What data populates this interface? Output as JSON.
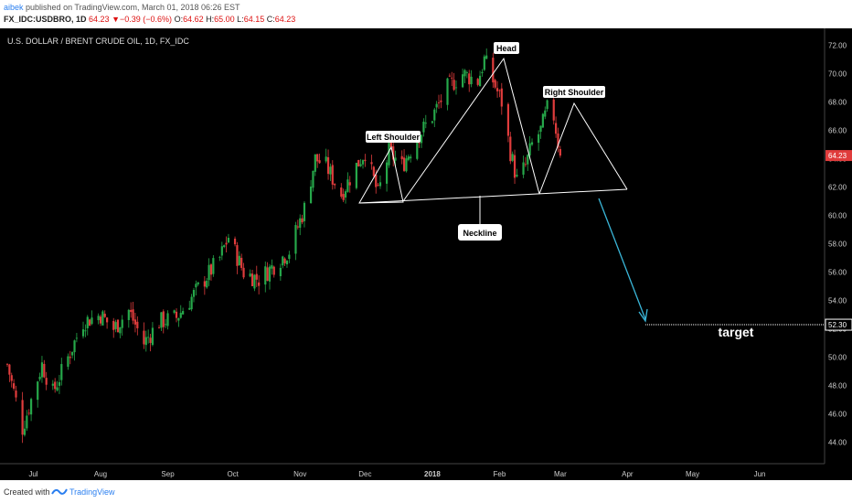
{
  "header": {
    "author": "aibek",
    "published_text": "published on TradingView.com, March 01, 2018 06:26 EST",
    "symbol": "FX_IDC:USDBRO, 1D",
    "last": "64.23",
    "change": "−0.39 (−0.6%)",
    "open_label": "O:",
    "open": "64.62",
    "high_label": "H:",
    "high": "65.00",
    "low_label": "L:",
    "low": "64.15",
    "close_label": "C:",
    "close": "64.23"
  },
  "footer": {
    "created_with": "Created with",
    "brand": "TradingView"
  },
  "chart_data": {
    "type": "candlestick",
    "title": "U.S. DOLLAR / BRENT CRUDE OIL, 1D, FX_IDC",
    "ylim": [
      42.5,
      73.2
    ],
    "y_ticks": [
      "44.00",
      "46.00",
      "48.00",
      "50.00",
      "52.00",
      "54.00",
      "56.00",
      "58.00",
      "60.00",
      "62.00",
      "64.00",
      "66.00",
      "68.00",
      "70.00",
      "72.00"
    ],
    "x_month_labels": [
      "Jul",
      "Aug",
      "Sep",
      "Oct",
      "Nov",
      "Dec",
      "2018",
      "Feb",
      "Mar",
      "Apr",
      "May",
      "Jun"
    ],
    "current_price_label": "64.23",
    "target_price_label": "52.30",
    "target_price": 52.3,
    "annotations": [
      "Left Shoulder",
      "Head",
      "Right Shoulder",
      "Neckline",
      "target"
    ],
    "colors": {
      "up": "#26a84a",
      "down": "#e03c3c",
      "background": "#000000",
      "pattern_lines": "#ffffff",
      "projection": "#3ab6d8",
      "price_label": "#e03c3c"
    },
    "price_path": [
      [
        "2017-06-19",
        49.5
      ],
      [
        "2017-06-26",
        45.0
      ],
      [
        "2017-07-05",
        49.5
      ],
      [
        "2017-07-10",
        47.5
      ],
      [
        "2017-07-17",
        50.0
      ],
      [
        "2017-07-24",
        52.5
      ],
      [
        "2017-08-01",
        53.0
      ],
      [
        "2017-08-07",
        52.0
      ],
      [
        "2017-08-14",
        53.3
      ],
      [
        "2017-08-21",
        51.0
      ],
      [
        "2017-08-28",
        52.5
      ],
      [
        "2017-09-05",
        52.8
      ],
      [
        "2017-09-11",
        54.0
      ],
      [
        "2017-09-18",
        55.5
      ],
      [
        "2017-09-25",
        57.0
      ],
      [
        "2017-09-29",
        58.5
      ],
      [
        "2017-10-06",
        56.0
      ],
      [
        "2017-10-13",
        55.5
      ],
      [
        "2017-10-20",
        56.5
      ],
      [
        "2017-10-27",
        57.5
      ],
      [
        "2017-11-03",
        60.5
      ],
      [
        "2017-11-08",
        64.0
      ],
      [
        "2017-11-13",
        63.5
      ],
      [
        "2017-11-20",
        61.5
      ],
      [
        "2017-11-27",
        63.5
      ],
      [
        "2017-12-01",
        64.5
      ],
      [
        "2017-12-07",
        61.5
      ],
      [
        "2017-12-12",
        64.5
      ],
      [
        "2017-12-18",
        63.5
      ],
      [
        "2017-12-25",
        65.5
      ],
      [
        "2018-01-01",
        67.0
      ],
      [
        "2018-01-08",
        69.0
      ],
      [
        "2018-01-15",
        70.0
      ],
      [
        "2018-01-22",
        69.5
      ],
      [
        "2018-01-25",
        71.0
      ],
      [
        "2018-01-29",
        69.5
      ],
      [
        "2018-02-02",
        68.0
      ],
      [
        "2018-02-06",
        64.5
      ],
      [
        "2018-02-09",
        62.5
      ],
      [
        "2018-02-13",
        63.5
      ],
      [
        "2018-02-16",
        65.0
      ],
      [
        "2018-02-20",
        66.0
      ],
      [
        "2018-02-23",
        67.5
      ],
      [
        "2018-02-26",
        67.0
      ],
      [
        "2018-03-01",
        64.23
      ]
    ]
  }
}
